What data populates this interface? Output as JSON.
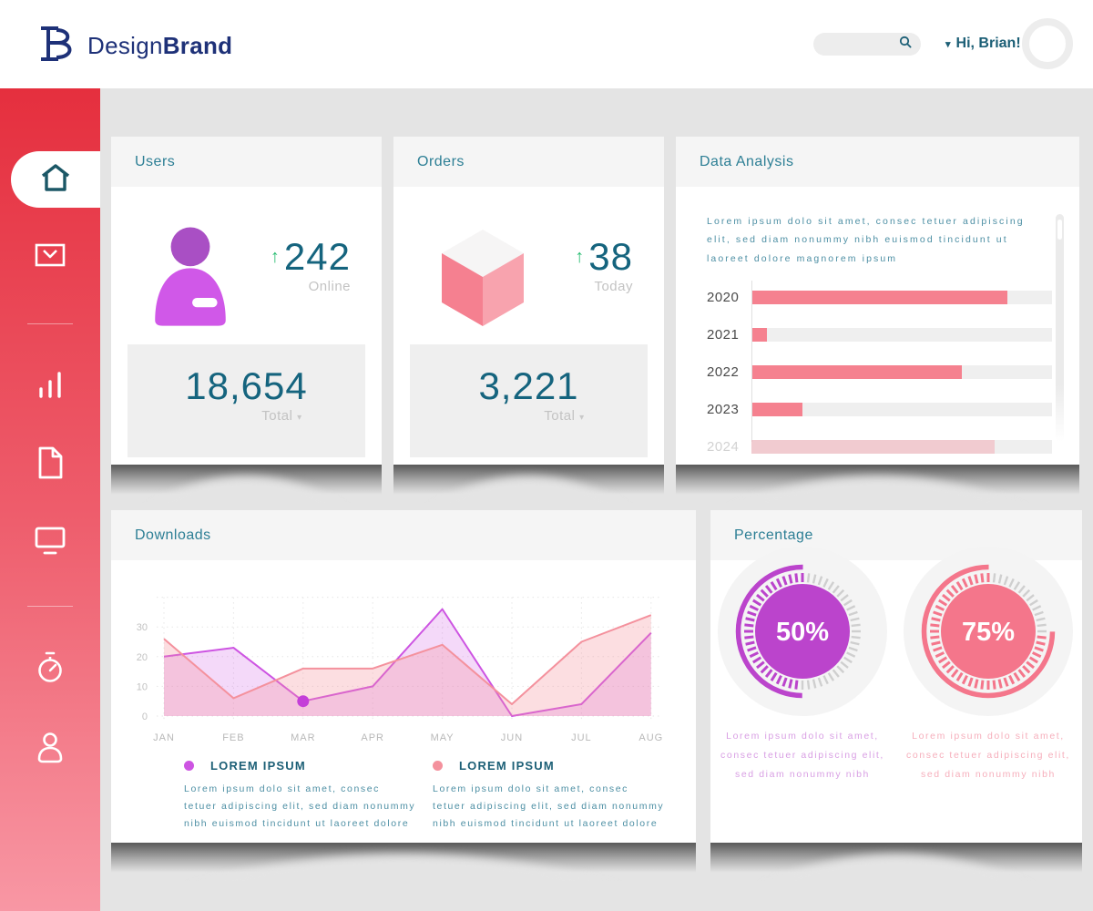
{
  "header": {
    "brand": {
      "design": "Design",
      "brand": "Brand"
    },
    "search": {
      "placeholder": ""
    },
    "greeting": "Hi, Brian!",
    "greeting_caret": "▾"
  },
  "sidebar": {
    "items": [
      "home",
      "mail",
      "stats",
      "documents",
      "monitor",
      "timer",
      "profile"
    ],
    "active_item": "home"
  },
  "cards": {
    "users": {
      "title": "Users",
      "arrow": "↑",
      "delta": "242",
      "delta_label": "Online",
      "total": "18,654",
      "total_label": "Total",
      "total_caret": "▾"
    },
    "orders": {
      "title": "Orders",
      "arrow": "↑",
      "delta": "38",
      "delta_label": "Today",
      "total": "3,221",
      "total_label": "Total",
      "total_caret": "▾"
    },
    "analysis": {
      "title": "Data Analysis",
      "description": "Lorem ipsum dolo sit amet, consec tetuer adipiscing elit, sed diam nonummy nibh euismod tincidunt ut laoreet dolore magnorem ipsum"
    },
    "downloads": {
      "title": "Downloads",
      "legend": [
        {
          "label": "LOREM IPSUM",
          "description": "Lorem ipsum dolo sit amet, consec tetuer adipiscing elit, sed diam nonummy nibh euismod tincidunt ut laoreet dolore"
        },
        {
          "label": "LOREM IPSUM",
          "description": "Lorem ipsum dolo sit amet, consec tetuer adipiscing elit, sed diam nonummy nibh euismod tincidunt ut laoreet dolore"
        }
      ]
    },
    "percentage": {
      "title": "Percentage",
      "texts": [
        "Lorem ipsum dolo sit amet, consec tetuer adipiscing elit, sed diam nonummy nibh",
        "Lorem ipsum dolo sit amet, consec tetuer adipiscing elit, sed diam nonummy nibh"
      ]
    }
  },
  "chart_data": [
    {
      "type": "bar",
      "title": "Data Analysis",
      "orientation": "horizontal",
      "categories": [
        "2020",
        "2021",
        "2022",
        "2023",
        "2024"
      ],
      "values_pct": [
        85,
        5,
        70,
        17,
        81
      ],
      "row_opacity": [
        1,
        1,
        1,
        1,
        0.32
      ],
      "bar_color": "#f5818f",
      "track_color": "#efefef"
    },
    {
      "type": "area",
      "title": "Downloads",
      "x": [
        "JAN",
        "FEB",
        "MAR",
        "APR",
        "MAY",
        "JUN",
        "JUL",
        "AUG"
      ],
      "yticks": [
        0,
        10,
        20,
        30
      ],
      "ylim": [
        0,
        40
      ],
      "grid": "dotted",
      "series": [
        {
          "name": "LOREM IPSUM",
          "line_color": "#cd54e2",
          "fill_color": "rgba(205,84,226,0.22)",
          "values": [
            20,
            23,
            5,
            10,
            36,
            0,
            4,
            28
          ]
        },
        {
          "name": "LOREM IPSUM",
          "line_color": "#f4919d",
          "fill_color": "rgba(244,145,157,0.30)",
          "values": [
            26,
            6,
            16,
            16,
            24,
            4,
            25,
            34
          ]
        }
      ],
      "marker": {
        "series": 0,
        "index": 2,
        "color": "#c43fd8"
      }
    },
    {
      "type": "donut",
      "title": "Percentage",
      "gauges": [
        {
          "value": 50,
          "label": "50%",
          "color": "#bb44cc",
          "text_color": "#d9a0e4"
        },
        {
          "value": 75,
          "label": "75%",
          "color": "#f4768b",
          "text_color": "#f6afbc"
        }
      ]
    }
  ]
}
